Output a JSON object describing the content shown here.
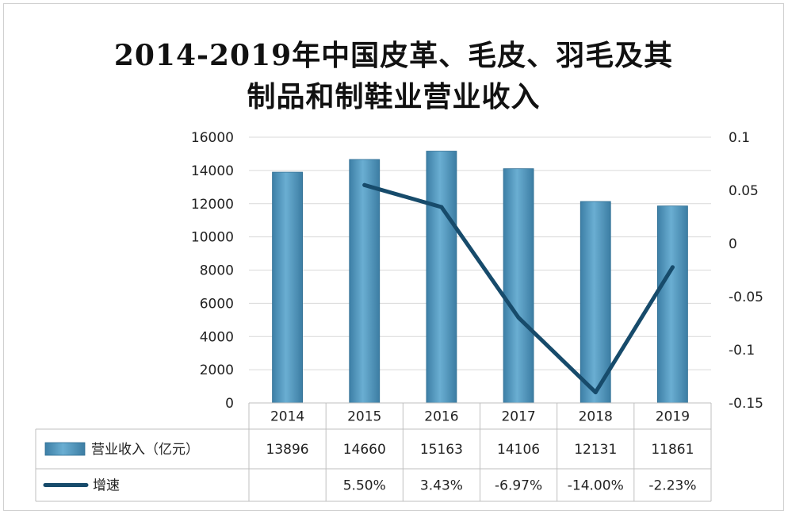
{
  "chart_data": {
    "type": "bar",
    "title_line1": "2014-2019年中国皮革、毛皮、羽毛及其",
    "title_line2": "制品和制鞋业营业收入",
    "categories": [
      "2014",
      "2015",
      "2016",
      "2017",
      "2018",
      "2019"
    ],
    "y_left": {
      "min": 0,
      "max": 16000,
      "ticks": [
        "0",
        "2000",
        "4000",
        "6000",
        "8000",
        "10000",
        "12000",
        "14000",
        "16000"
      ]
    },
    "y_right": {
      "min": -0.15,
      "max": 0.1,
      "ticks": [
        "-0.15",
        "-0.1",
        "-0.05",
        "0",
        "0.05",
        "0.1"
      ]
    },
    "series": [
      {
        "name": "营业收入（亿元）",
        "kind": "bar",
        "color": "#5b9ec3",
        "values": [
          13896,
          14660,
          15163,
          14106,
          12131,
          11861
        ],
        "labels": [
          "13896",
          "14660",
          "15163",
          "14106",
          "12131",
          "11861"
        ]
      },
      {
        "name": "增速",
        "kind": "line",
        "color": "#174b6b",
        "values": [
          null,
          0.055,
          0.0343,
          -0.0697,
          -0.14,
          -0.0223
        ],
        "labels": [
          "",
          "5.50%",
          "3.43%",
          "-6.97%",
          "-14.00%",
          "-2.23%"
        ]
      }
    ],
    "grid": true
  }
}
